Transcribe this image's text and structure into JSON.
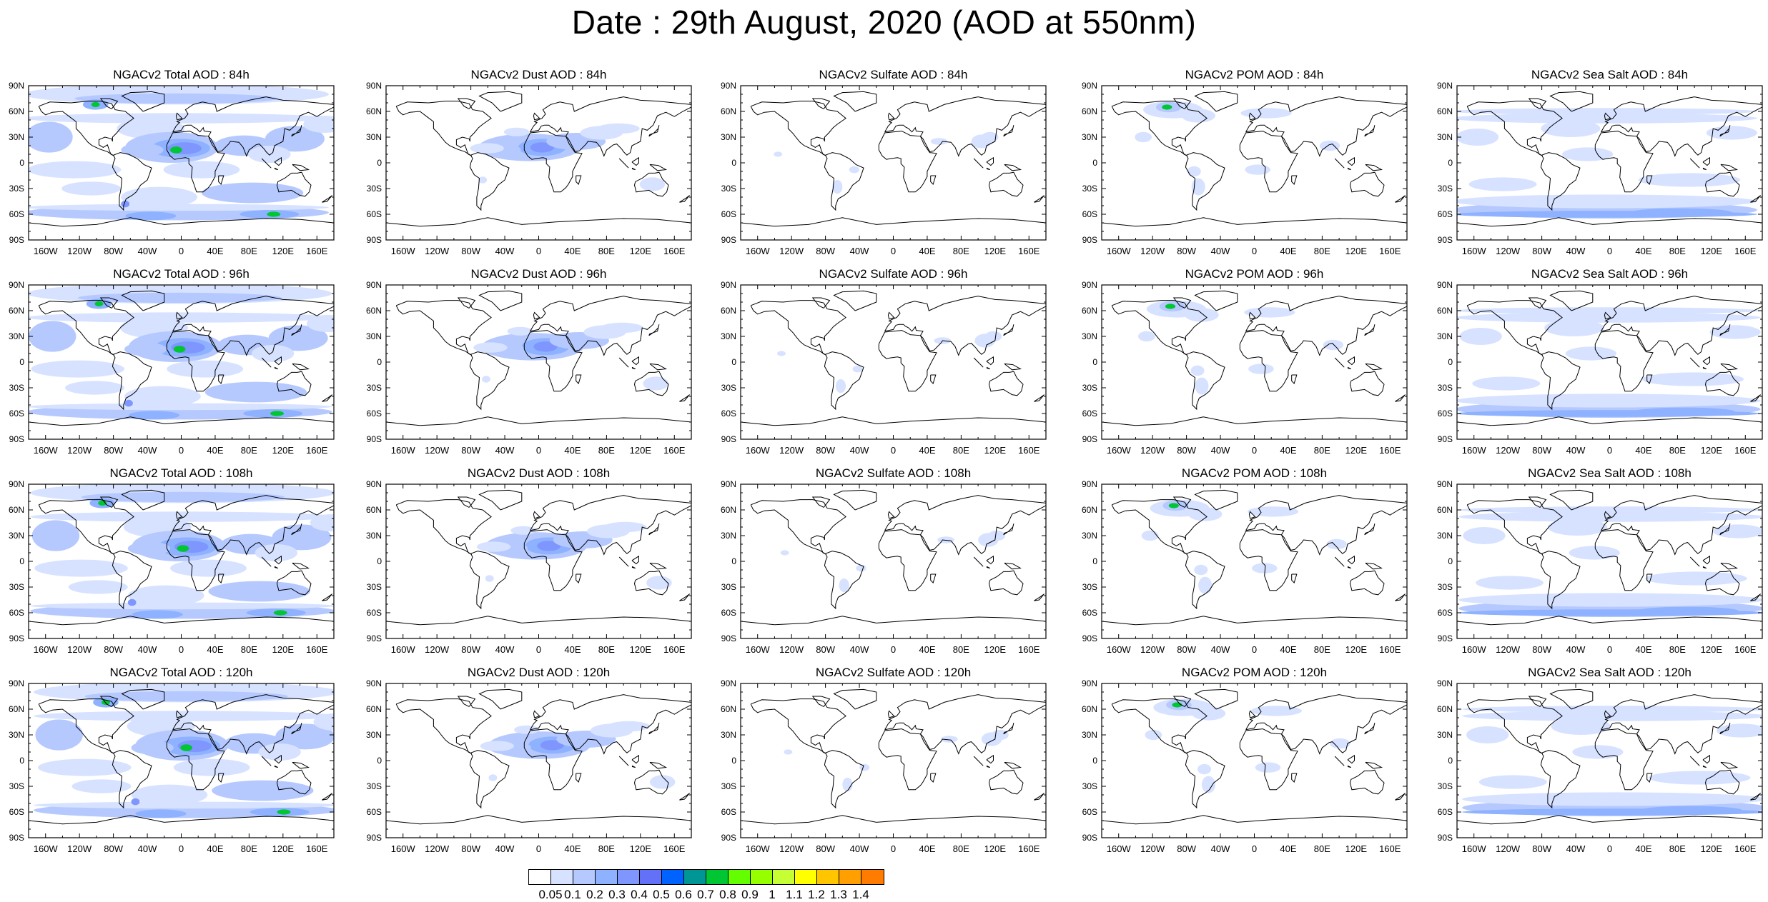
{
  "title": "Date : 29th August, 2020 (AOD at 550nm)",
  "y_axis_labels": [
    "90N",
    "60N",
    "30N",
    "0",
    "30S",
    "60S",
    "90S"
  ],
  "x_axis_labels": [
    "160W",
    "120W",
    "80W",
    "40W",
    "0",
    "40E",
    "80E",
    "120E",
    "160E"
  ],
  "rows": [
    {
      "forecast_hour": "84h",
      "panels": [
        {
          "title": "NGACv2 Total AOD : 84h",
          "species": "total"
        },
        {
          "title": "NGACv2 Dust AOD : 84h",
          "species": "dust"
        },
        {
          "title": "NGACv2 Sulfate AOD : 84h",
          "species": "sulfate"
        },
        {
          "title": "NGACv2 POM AOD : 84h",
          "species": "pom"
        },
        {
          "title": "NGACv2 Sea Salt AOD : 84h",
          "species": "seasalt"
        }
      ]
    },
    {
      "forecast_hour": "96h",
      "panels": [
        {
          "title": "NGACv2 Total AOD : 96h",
          "species": "total"
        },
        {
          "title": "NGACv2 Dust AOD : 96h",
          "species": "dust"
        },
        {
          "title": "NGACv2 Sulfate AOD : 96h",
          "species": "sulfate"
        },
        {
          "title": "NGACv2 POM AOD : 96h",
          "species": "pom"
        },
        {
          "title": "NGACv2 Sea Salt AOD : 96h",
          "species": "seasalt"
        }
      ]
    },
    {
      "forecast_hour": "108h",
      "panels": [
        {
          "title": "NGACv2 Total AOD : 108h",
          "species": "total"
        },
        {
          "title": "NGACv2 Dust AOD : 108h",
          "species": "dust"
        },
        {
          "title": "NGACv2 Sulfate AOD : 108h",
          "species": "sulfate"
        },
        {
          "title": "NGACv2 POM AOD : 108h",
          "species": "pom"
        },
        {
          "title": "NGACv2 Sea Salt AOD : 108h",
          "species": "seasalt"
        }
      ]
    },
    {
      "forecast_hour": "120h",
      "panels": [
        {
          "title": "NGACv2 Total AOD : 120h",
          "species": "total"
        },
        {
          "title": "NGACv2 Dust AOD : 120h",
          "species": "dust"
        },
        {
          "title": "NGACv2 Sulfate AOD : 120h",
          "species": "sulfate"
        },
        {
          "title": "NGACv2 POM AOD : 120h",
          "species": "pom"
        },
        {
          "title": "NGACv2 Sea Salt  AOD : 120h",
          "species": "seasalt"
        }
      ]
    }
  ],
  "colorbar": {
    "labels": [
      "0.05",
      "0.1",
      "0.2",
      "0.3",
      "0.4",
      "0.5",
      "0.6",
      "0.7",
      "0.8",
      "0.9",
      "1",
      "1.1",
      "1.2",
      "1.3",
      "1.4"
    ],
    "colors": [
      "#ffffff",
      "#d6e2ff",
      "#b5c9ff",
      "#8eb2ff",
      "#7f96ff",
      "#6370f8",
      "#0063ff",
      "#009696",
      "#00c633",
      "#63ff00",
      "#96ff00",
      "#c6ff33",
      "#ffff00",
      "#ffc600",
      "#ffa000",
      "#ff7c00",
      "#ff1900"
    ]
  }
}
